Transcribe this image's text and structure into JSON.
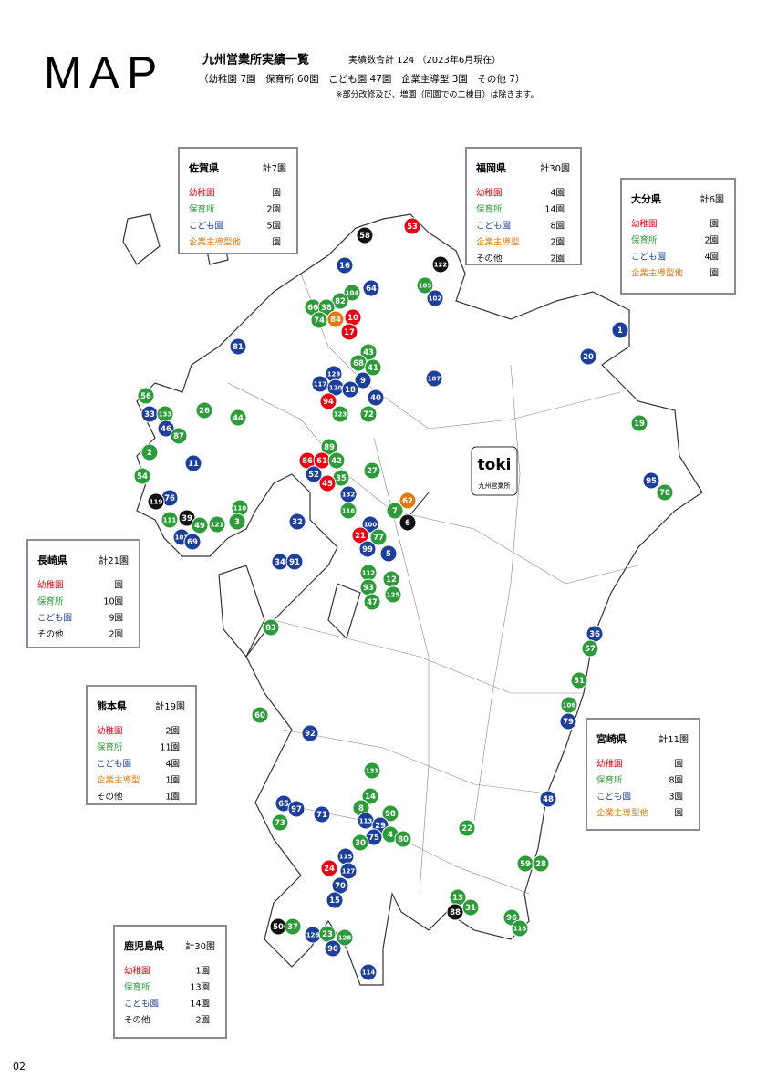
{
  "header": {
    "page_title": "MAP",
    "title": "九州営業所実績一覧",
    "total": "実績数合計 124 （2023年6月現在）",
    "breakdown": "（幼稚園 7園　保育所 60園　こども園 47園　企業主導型 3園　その他 7）",
    "note": "※部分改修及び、増園（同園での二棟目）は除きます。"
  },
  "office": {
    "logo": "toki",
    "label": "九州営業所"
  },
  "prefectures": [
    {
      "name": "佐賀県",
      "total": "計7園",
      "rows": [
        {
          "label": "幼稚園",
          "count": "園",
          "color": "#e60012"
        },
        {
          "label": "保育所",
          "count": "2園",
          "color": "#2e9b3a"
        },
        {
          "label": "こども園",
          "count": "5園",
          "color": "#1d3f9a"
        },
        {
          "label": "企業主導型他",
          "count": "園",
          "color": "#e07a10"
        }
      ]
    },
    {
      "name": "福岡県",
      "total": "計30園",
      "rows": [
        {
          "label": "幼稚園",
          "count": "4園",
          "color": "#e60012"
        },
        {
          "label": "保育所",
          "count": "14園",
          "color": "#2e9b3a"
        },
        {
          "label": "こども園",
          "count": "8園",
          "color": "#1d3f9a"
        },
        {
          "label": "企業主導型",
          "count": "2園",
          "color": "#e07a10"
        },
        {
          "label": "その他",
          "count": "2園",
          "color": "#111111"
        }
      ]
    },
    {
      "name": "大分県",
      "total": "計6園",
      "rows": [
        {
          "label": "幼稚園",
          "count": "園",
          "color": "#e60012"
        },
        {
          "label": "保育所",
          "count": "2園",
          "color": "#2e9b3a"
        },
        {
          "label": "こども園",
          "count": "4園",
          "color": "#1d3f9a"
        },
        {
          "label": "企業主導型他",
          "count": "園",
          "color": "#e07a10"
        }
      ]
    },
    {
      "name": "長崎県",
      "total": "計21園",
      "rows": [
        {
          "label": "幼稚園",
          "count": "園",
          "color": "#e60012"
        },
        {
          "label": "保育所",
          "count": "10園",
          "color": "#2e9b3a"
        },
        {
          "label": "こども園",
          "count": "9園",
          "color": "#1d3f9a"
        },
        {
          "label": "その他",
          "count": "2園",
          "color": "#111111"
        }
      ]
    },
    {
      "name": "熊本県",
      "total": "計19園",
      "rows": [
        {
          "label": "幼稚園",
          "count": "2園",
          "color": "#e60012"
        },
        {
          "label": "保育所",
          "count": "11園",
          "color": "#2e9b3a"
        },
        {
          "label": "こども園",
          "count": "4園",
          "color": "#1d3f9a"
        },
        {
          "label": "企業主導型",
          "count": "1園",
          "color": "#e07a10"
        },
        {
          "label": "その他",
          "count": "1園",
          "color": "#111111"
        }
      ]
    },
    {
      "name": "宮崎県",
      "total": "計11園",
      "rows": [
        {
          "label": "幼稚園",
          "count": "園",
          "color": "#e60012"
        },
        {
          "label": "保育所",
          "count": "8園",
          "color": "#2e9b3a"
        },
        {
          "label": "こども園",
          "count": "3園",
          "color": "#1d3f9a"
        },
        {
          "label": "企業主導型他",
          "count": "園",
          "color": "#e07a10"
        }
      ]
    },
    {
      "name": "鹿児島県",
      "total": "計30園",
      "rows": [
        {
          "label": "幼稚園",
          "count": "1園",
          "color": "#e60012"
        },
        {
          "label": "保育所",
          "count": "13園",
          "color": "#2e9b3a"
        },
        {
          "label": "こども園",
          "count": "14園",
          "color": "#1d3f9a"
        },
        {
          "label": "その他",
          "count": "2園",
          "color": "#111111"
        }
      ]
    }
  ],
  "markers": [
    [
      "53",
      "r"
    ],
    [
      "58",
      "b"
    ],
    [
      "122",
      "b"
    ],
    [
      "16",
      "k"
    ],
    [
      "105",
      "g"
    ],
    [
      "104",
      "g"
    ],
    [
      "64",
      "k"
    ],
    [
      "102",
      "k"
    ],
    [
      "82",
      "g"
    ],
    [
      "66",
      "g"
    ],
    [
      "38",
      "g"
    ],
    [
      "74",
      "g"
    ],
    [
      "84",
      "o"
    ],
    [
      "10",
      "r"
    ],
    [
      "17",
      "r"
    ],
    [
      "1",
      "k"
    ],
    [
      "81",
      "k"
    ],
    [
      "43",
      "g"
    ],
    [
      "20",
      "k"
    ],
    [
      "68",
      "g"
    ],
    [
      "41",
      "g"
    ],
    [
      "129",
      "k"
    ],
    [
      "107",
      "k"
    ],
    [
      "117",
      "k"
    ],
    [
      "120",
      "k"
    ],
    [
      "9",
      "k"
    ],
    [
      "18",
      "k"
    ],
    [
      "40",
      "k"
    ],
    [
      "56",
      "g"
    ],
    [
      "94",
      "r"
    ],
    [
      "33",
      "k"
    ],
    [
      "133",
      "g"
    ],
    [
      "26",
      "g"
    ],
    [
      "44",
      "g"
    ],
    [
      "123",
      "g"
    ],
    [
      "72",
      "g"
    ],
    [
      "46",
      "k"
    ],
    [
      "87",
      "g"
    ],
    [
      "19",
      "g"
    ],
    [
      "89",
      "g"
    ],
    [
      "2",
      "g"
    ],
    [
      "86",
      "r"
    ],
    [
      "61",
      "r"
    ],
    [
      "42",
      "g"
    ],
    [
      "11",
      "k"
    ],
    [
      "27",
      "g"
    ],
    [
      "52",
      "k"
    ],
    [
      "54",
      "g"
    ],
    [
      "35",
      "g"
    ],
    [
      "95",
      "k"
    ],
    [
      "45",
      "r"
    ],
    [
      "78",
      "g"
    ],
    [
      "132",
      "k"
    ],
    [
      "76",
      "k"
    ],
    [
      "62",
      "o"
    ],
    [
      "119",
      "b"
    ],
    [
      "110",
      "g"
    ],
    [
      "7",
      "g"
    ],
    [
      "116",
      "g"
    ],
    [
      "111",
      "g"
    ],
    [
      "39",
      "b"
    ],
    [
      "49",
      "g"
    ],
    [
      "121",
      "g"
    ],
    [
      "3",
      "g"
    ],
    [
      "6",
      "b"
    ],
    [
      "100",
      "k"
    ],
    [
      "32",
      "k"
    ],
    [
      "21",
      "r"
    ],
    [
      "77",
      "g"
    ],
    [
      "101",
      "k"
    ],
    [
      "69",
      "k"
    ],
    [
      "99",
      "k"
    ],
    [
      "5",
      "k"
    ],
    [
      "34",
      "k"
    ],
    [
      "91",
      "k"
    ],
    [
      "112",
      "g"
    ],
    [
      "12",
      "g"
    ],
    [
      "93",
      "g"
    ],
    [
      "125",
      "g"
    ],
    [
      "47",
      "g"
    ],
    [
      "83",
      "g"
    ],
    [
      "36",
      "k"
    ],
    [
      "57",
      "g"
    ],
    [
      "51",
      "g"
    ],
    [
      "106",
      "g"
    ],
    [
      "79",
      "k"
    ],
    [
      "60",
      "g"
    ],
    [
      "92",
      "k"
    ],
    [
      "131",
      "g"
    ],
    [
      "14",
      "g"
    ],
    [
      "65",
      "k"
    ],
    [
      "97",
      "k"
    ],
    [
      "8",
      "g"
    ],
    [
      "48",
      "k"
    ],
    [
      "71",
      "k"
    ],
    [
      "98",
      "g"
    ],
    [
      "113",
      "k"
    ],
    [
      "29",
      "k"
    ],
    [
      "73",
      "g"
    ],
    [
      "22",
      "g"
    ],
    [
      "75",
      "k"
    ],
    [
      "4",
      "g"
    ],
    [
      "80",
      "g"
    ],
    [
      "30",
      "g"
    ],
    [
      "115",
      "k"
    ],
    [
      "59",
      "g"
    ],
    [
      "28",
      "g"
    ],
    [
      "127",
      "k"
    ],
    [
      "24",
      "r"
    ],
    [
      "70",
      "k"
    ],
    [
      "13",
      "g"
    ],
    [
      "15",
      "k"
    ],
    [
      "88",
      "b"
    ],
    [
      "31",
      "g"
    ],
    [
      "96",
      "g"
    ],
    [
      "118",
      "g"
    ],
    [
      "50",
      "b"
    ],
    [
      "37",
      "g"
    ],
    [
      "126",
      "k"
    ],
    [
      "23",
      "g"
    ],
    [
      "128",
      "g"
    ],
    [
      "90",
      "k"
    ],
    [
      "114",
      "k"
    ]
  ],
  "marker_colors": {
    "r": "#e60012",
    "g": "#2e9b3a",
    "k": "#1d3f9a",
    "o": "#e07a10",
    "b": "#111111"
  },
  "page_number": "02"
}
